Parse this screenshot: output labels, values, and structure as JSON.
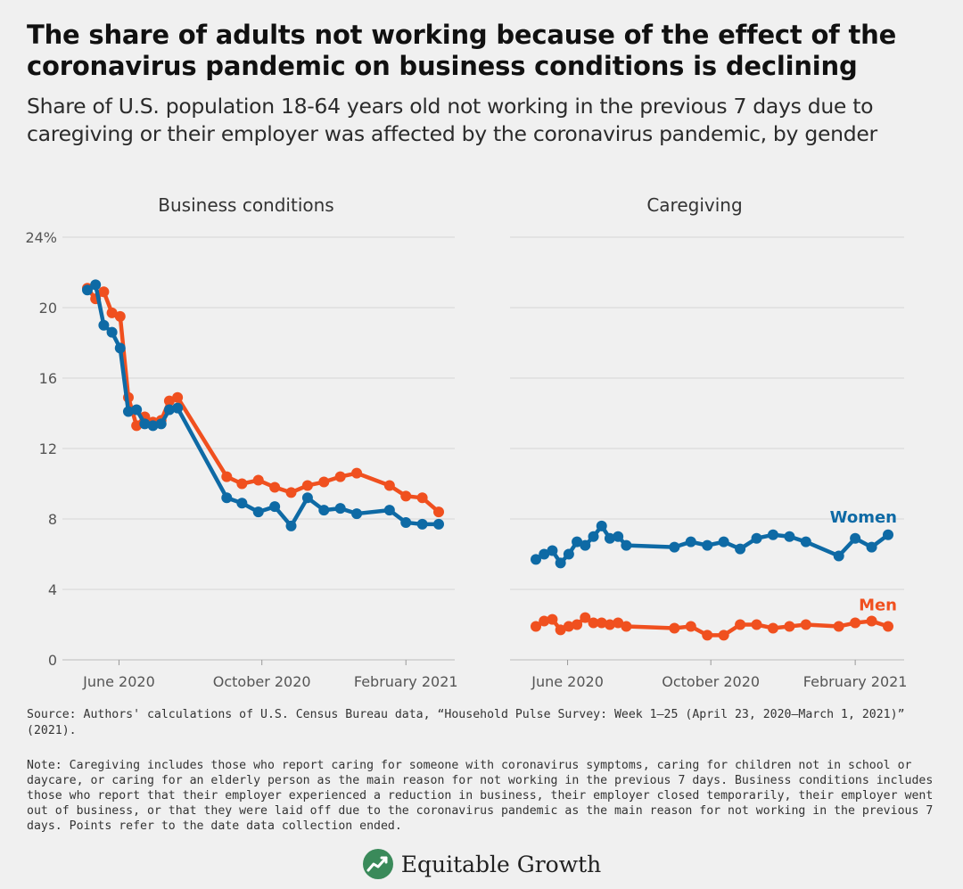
{
  "header": {
    "title": "The share of adults not working because of the effect of the coronavirus pandemic on business conditions is declining",
    "subtitle": "Share of U.S. population 18-64 years old not working in the previous 7 days due to caregiving or their employer was affected by the coronavirus pandemic, by gender"
  },
  "chart_data": {
    "type": "line",
    "y_ticks": [
      "24%",
      "20",
      "16",
      "12",
      "8",
      "4",
      "0"
    ],
    "x_ticks": [
      "June 2020",
      "October 2020",
      "February 2021"
    ],
    "ylim": [
      0,
      24
    ],
    "colors": {
      "Women": "#0e6aa5",
      "Men": "#f0501f"
    },
    "panels": [
      {
        "title": "Business conditions",
        "x": [
          "2020-05-05",
          "2020-05-12",
          "2020-05-19",
          "2020-05-26",
          "2020-06-02",
          "2020-06-09",
          "2020-06-16",
          "2020-06-23",
          "2020-06-30",
          "2020-07-07",
          "2020-07-14",
          "2020-07-21",
          "2020-09-01",
          "2020-09-14",
          "2020-09-28",
          "2020-10-12",
          "2020-10-26",
          "2020-11-09",
          "2020-11-23",
          "2020-12-07",
          "2020-12-21",
          "2021-01-18",
          "2021-02-01",
          "2021-02-15",
          "2021-03-01"
        ],
        "series": [
          {
            "name": "Women",
            "values": [
              21.0,
              21.3,
              19.0,
              18.6,
              17.7,
              14.1,
              14.2,
              13.4,
              13.3,
              13.4,
              14.2,
              14.3,
              9.2,
              8.9,
              8.4,
              8.7,
              7.6,
              9.2,
              8.5,
              8.6,
              8.3,
              8.5,
              7.8,
              7.7,
              7.7
            ]
          },
          {
            "name": "Men",
            "values": [
              21.1,
              20.5,
              20.9,
              19.7,
              19.5,
              14.9,
              13.3,
              13.8,
              13.5,
              13.6,
              14.7,
              14.9,
              10.4,
              10.0,
              10.2,
              9.8,
              9.5,
              9.9,
              10.1,
              10.4,
              10.6,
              9.9,
              9.3,
              9.2,
              8.4
            ]
          }
        ]
      },
      {
        "title": "Caregiving",
        "x": [
          "2020-05-05",
          "2020-05-12",
          "2020-05-19",
          "2020-05-26",
          "2020-06-02",
          "2020-06-09",
          "2020-06-16",
          "2020-06-23",
          "2020-06-30",
          "2020-07-07",
          "2020-07-14",
          "2020-07-21",
          "2020-08-31",
          "2020-09-14",
          "2020-09-28",
          "2020-10-12",
          "2020-10-26",
          "2020-11-09",
          "2020-11-23",
          "2020-12-07",
          "2020-12-21",
          "2021-01-18",
          "2021-02-01",
          "2021-02-15",
          "2021-03-01"
        ],
        "series": [
          {
            "name": "Women",
            "values": [
              5.7,
              6.0,
              6.2,
              5.5,
              6.0,
              6.7,
              6.5,
              7.0,
              7.6,
              6.9,
              7.0,
              6.5,
              6.4,
              6.7,
              6.5,
              6.7,
              6.3,
              6.9,
              7.1,
              7.0,
              6.7,
              5.9,
              6.9,
              6.4,
              7.1
            ]
          },
          {
            "name": "Men",
            "values": [
              1.9,
              2.2,
              2.3,
              1.7,
              1.9,
              2.0,
              2.4,
              2.1,
              2.1,
              2.0,
              2.1,
              1.9,
              1.8,
              1.9,
              1.4,
              1.4,
              2.0,
              2.0,
              1.8,
              1.9,
              2.0,
              1.9,
              2.1,
              2.2,
              1.9
            ]
          }
        ]
      }
    ],
    "series_labels": [
      {
        "name": "Women"
      },
      {
        "name": "Men"
      }
    ]
  },
  "footer": {
    "source": "Source: Authors' calculations of U.S. Census Bureau data, “Household Pulse Survey: Week 1–25 (April 23, 2020–March 1, 2021)” (2021).",
    "note": "Note: Caregiving includes those who report caring for someone with coronavirus symptoms, caring for children not in school or daycare, or caring for an elderly person as the main reason for not working in the previous 7 days. Business conditions includes those who report that their employer experienced a reduction in business, their employer closed temporarily, their employer went out of business, or that they were laid off due to the coronavirus pandemic as the main reason for not working in the previous 7 days. Points refer to the date data collection ended.",
    "brand": "Equitable Growth",
    "brand_icon": "rising-chart-logo-icon"
  }
}
